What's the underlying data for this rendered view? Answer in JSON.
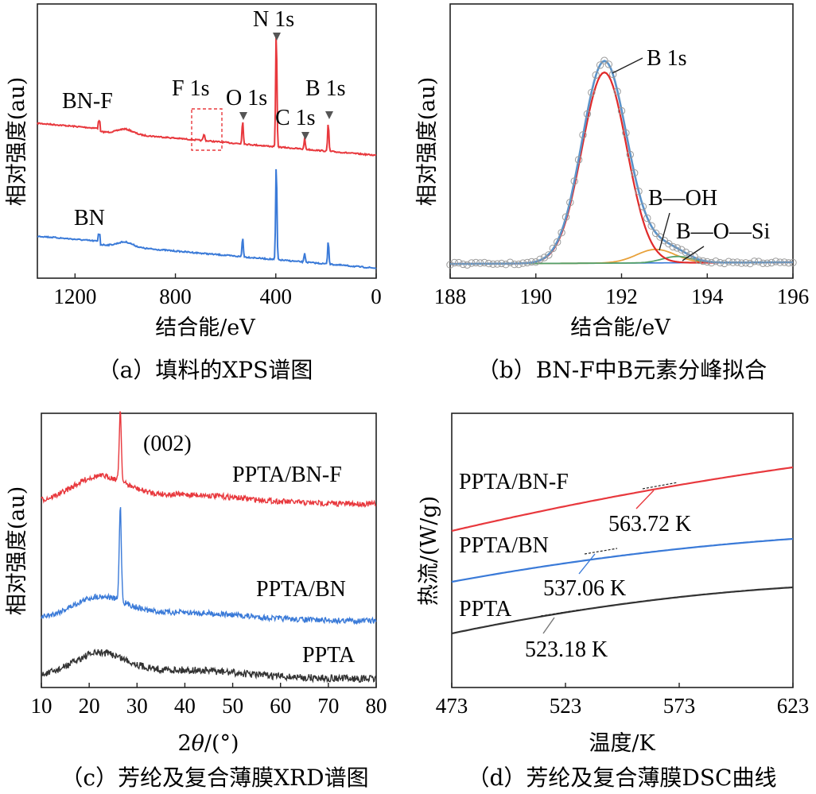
{
  "chart_data": [
    {
      "id": "a",
      "type": "line",
      "caption": "（a）填料的XPS谱图",
      "xlabel": "结合能/eV",
      "ylabel": "相对强度(au)",
      "xlim": [
        1350,
        0
      ],
      "xticks": [
        "1200",
        "800",
        "400",
        "0"
      ],
      "series": [
        {
          "name": "BN-F",
          "color": "#e8383d"
        },
        {
          "name": "BN",
          "color": "#3a7ad8"
        }
      ],
      "peaks": [
        {
          "label": "N 1s",
          "x": 398
        },
        {
          "label": "O 1s",
          "x": 532
        },
        {
          "label": "C 1s",
          "x": 285
        },
        {
          "label": "B 1s",
          "x": 191
        },
        {
          "label": "F 1s",
          "x": 686
        }
      ]
    },
    {
      "id": "b",
      "type": "line",
      "caption": "（b）BN-F中B元素分峰拟合",
      "xlabel": "结合能/eV",
      "ylabel": "相对强度(au)",
      "xlim": [
        188,
        196
      ],
      "xticks": [
        "188",
        "190",
        "192",
        "194",
        "196"
      ],
      "series": [
        {
          "name": "B 1s",
          "center": 191.6,
          "color": "#e02a2a"
        },
        {
          "name": "B—OH",
          "center": 192.8,
          "color": "#e8a13a"
        },
        {
          "name": "B—O—Si",
          "center": 193.3,
          "color": "#55a06a"
        },
        {
          "name": "fit",
          "color": "#5b93c9"
        }
      ],
      "labels": [
        "B 1s",
        "B—OH",
        "B—O—Si"
      ]
    },
    {
      "id": "c",
      "type": "line",
      "caption": "（c）芳纶及复合薄膜XRD谱图",
      "xlabel": "2θ/(°)",
      "ylabel": "相对强度(au)",
      "xlim": [
        10,
        80
      ],
      "xticks": [
        "10",
        "20",
        "30",
        "40",
        "50",
        "60",
        "70",
        "80"
      ],
      "annotation": "(002)",
      "peak_2theta": 26.5,
      "series": [
        {
          "name": "PPTA/BN-F",
          "color": "#e8383d"
        },
        {
          "name": "PPTA/BN",
          "color": "#3a7ad8"
        },
        {
          "name": "PPTA",
          "color": "#333333"
        }
      ]
    },
    {
      "id": "d",
      "type": "line",
      "caption": "（d）芳纶及复合薄膜DSC曲线",
      "xlabel": "温度/K",
      "ylabel": "热流/(W/g)",
      "xlim": [
        473,
        623
      ],
      "xticks": [
        "473",
        "523",
        "573",
        "623"
      ],
      "series": [
        {
          "name": "PPTA/BN-F",
          "color": "#e8383d",
          "tg": "563.72 K"
        },
        {
          "name": "PPTA/BN",
          "color": "#3a7ad8",
          "tg": "537.06 K"
        },
        {
          "name": "PPTA",
          "color": "#333333",
          "tg": "523.18 K"
        }
      ]
    }
  ]
}
